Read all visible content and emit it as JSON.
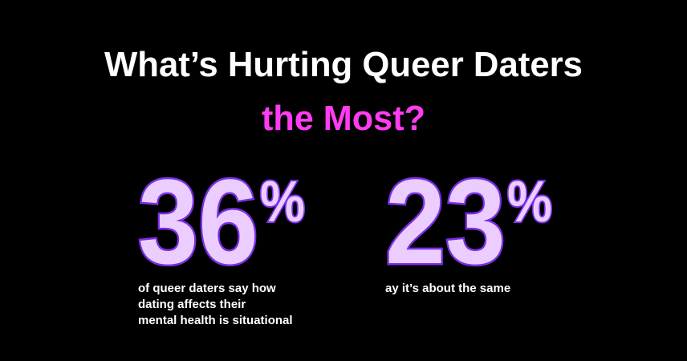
{
  "header": {
    "title": "What’s Hurting Queer Daters",
    "highlight": "the Most?"
  },
  "stats": [
    {
      "number": "36",
      "unit": "%",
      "caption": [
        "of queer daters say how",
        "dating affects their",
        "mental health is situational"
      ]
    },
    {
      "number": "23",
      "unit": "%",
      "caption": [
        "ay it’s about the same"
      ]
    }
  ]
}
